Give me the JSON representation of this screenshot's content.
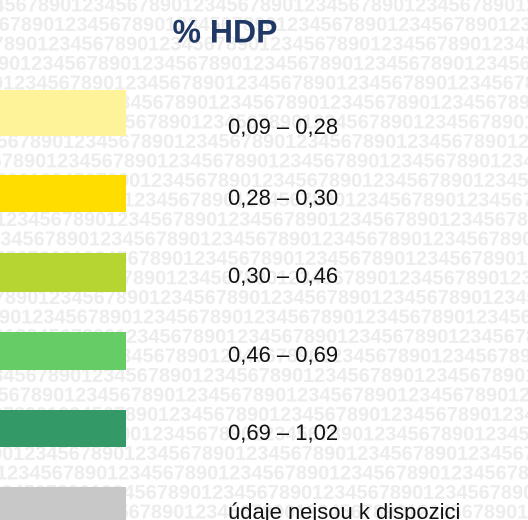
{
  "title": "% HDP",
  "watermark": "1234567890",
  "legend": [
    {
      "label": "0,09 – 0,28",
      "color": "#fff39a"
    },
    {
      "label": "0,28 – 0,30",
      "color": "#ffdd00"
    },
    {
      "label": "0,30 – 0,46",
      "color": "#b6d432"
    },
    {
      "label": "0,46 – 0,69",
      "color": "#66cc66"
    },
    {
      "label": "0,69 – 1,02",
      "color": "#339966"
    },
    {
      "label": "údaje nejsou k dispozici",
      "color": "#c8c8c8"
    }
  ]
}
